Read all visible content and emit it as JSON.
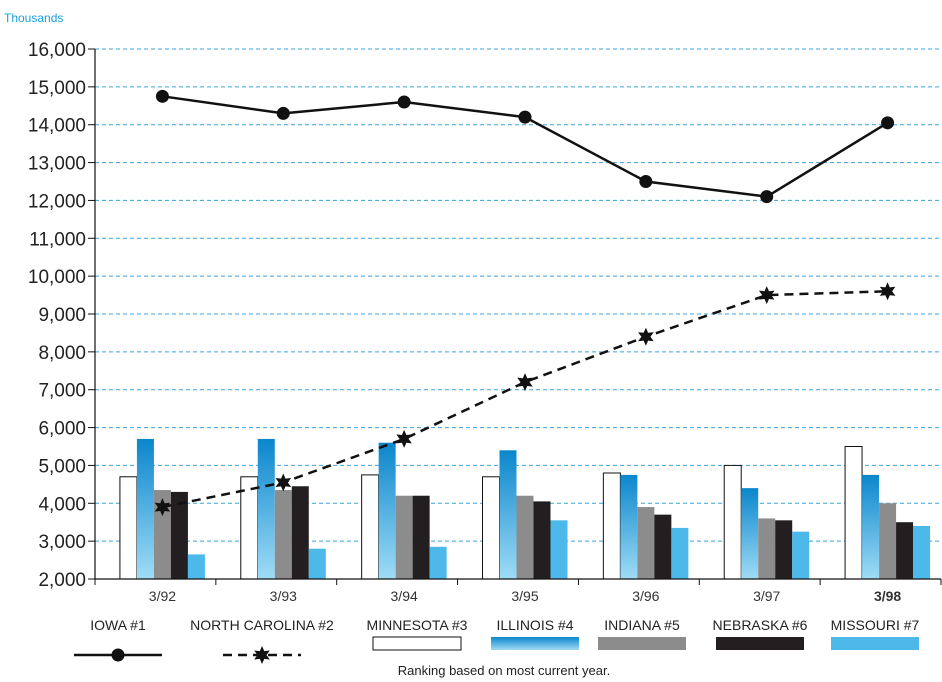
{
  "chart_data": {
    "type": "bar",
    "unit_label": "Thousands",
    "categories": [
      "3/92",
      "3/93",
      "3/94",
      "3/95",
      "3/96",
      "3/97",
      "3/98"
    ],
    "y_ticks": [
      "2,000",
      "3,000",
      "4,000",
      "5,000",
      "6,000",
      "7,000",
      "8,000",
      "9,000",
      "10,000",
      "11,000",
      "12,000",
      "13,000",
      "14,000",
      "15,000",
      "16,000"
    ],
    "ylim": [
      2000,
      16000
    ],
    "grid": true,
    "bar_series": [
      {
        "name": "MINNESOTA #3",
        "color": "#ffffff",
        "values": [
          4700,
          4700,
          4750,
          4700,
          4800,
          5000,
          5500
        ]
      },
      {
        "name": "ILLINOIS #4",
        "color": "#1aa0dc",
        "values": [
          5700,
          5700,
          5600,
          5400,
          4750,
          4400,
          4750
        ]
      },
      {
        "name": "INDIANA #5",
        "color": "#8c8c8c",
        "values": [
          4350,
          4350,
          4200,
          4200,
          3900,
          3600,
          4000
        ]
      },
      {
        "name": "NEBRASKA #6",
        "color": "#231f20",
        "values": [
          4300,
          4450,
          4200,
          4050,
          3700,
          3550,
          3500
        ]
      },
      {
        "name": "MISSOURI #7",
        "color": "#4db8ea",
        "values": [
          2650,
          2800,
          2850,
          3550,
          3350,
          3250,
          3400
        ]
      }
    ],
    "line_series": [
      {
        "name": "IOWA #1",
        "style": "solid",
        "marker": "circle",
        "color": "#111111",
        "values": [
          14750,
          14300,
          14600,
          14200,
          12500,
          12100,
          14050
        ]
      },
      {
        "name": "NORTH CAROLINA #2",
        "style": "dashed",
        "marker": "star",
        "color": "#111111",
        "values": [
          3900,
          4550,
          5700,
          7200,
          8400,
          9500,
          9600
        ]
      }
    ],
    "footnote": "Ranking based on most current year."
  }
}
